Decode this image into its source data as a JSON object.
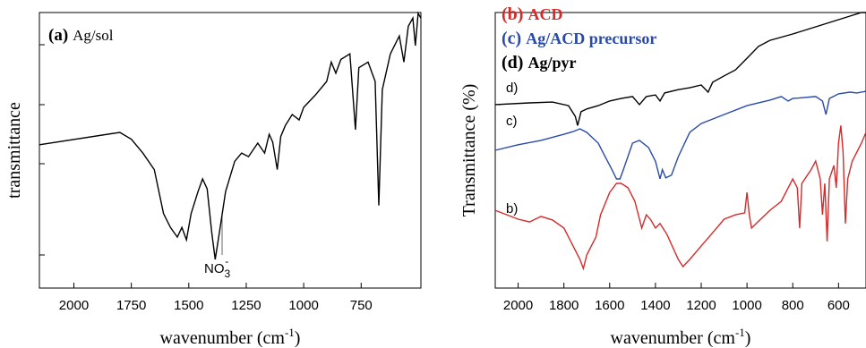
{
  "chart_data": [
    {
      "type": "line",
      "xlabel": "wavenumber (cm",
      "xlabel_sup": "-1",
      "xlabel_end": ")",
      "ylabel": "transmittance",
      "xlim": [
        2150,
        490
      ],
      "xticks": [
        2000,
        1750,
        1500,
        1250,
        1000,
        750
      ],
      "ylim": [
        0,
        100
      ],
      "annotation": {
        "text": "NO",
        "sub": "3",
        "sup": "-"
      },
      "series": [
        {
          "tag": "(a)",
          "name": "Ag/sol",
          "color": "#000000",
          "x": [
            2150,
            1800,
            1750,
            1700,
            1650,
            1610,
            1580,
            1550,
            1530,
            1510,
            1490,
            1460,
            1440,
            1420,
            1400,
            1385,
            1370,
            1340,
            1300,
            1270,
            1240,
            1200,
            1170,
            1150,
            1135,
            1115,
            1100,
            1080,
            1050,
            1020,
            1000,
            950,
            900,
            880,
            860,
            838,
            799,
            775,
            760,
            720,
            689,
            673,
            658,
            623,
            584,
            564,
            545,
            525,
            514,
            502,
            490
          ],
          "values": [
            52,
            56.5,
            54,
            49,
            43,
            27,
            22,
            18.5,
            22,
            17.5,
            27,
            35,
            39.6,
            36,
            20,
            10.4,
            18.5,
            35,
            46,
            49,
            47.7,
            52.6,
            49,
            55.8,
            53,
            43,
            55,
            59,
            63,
            61,
            65.6,
            70,
            75,
            82,
            78,
            83,
            85,
            57.5,
            80,
            82,
            75,
            30,
            72,
            85,
            91.5,
            82,
            95,
            98,
            88,
            99.7,
            98
          ]
        }
      ]
    },
    {
      "type": "line",
      "xlabel": "wavenumber (cm",
      "xlabel_sup": "-1",
      "xlabel_end": ")",
      "ylabel": "Transmittance (%)",
      "xlim": [
        2100,
        480
      ],
      "xticks": [
        2000,
        1800,
        1600,
        1400,
        1200,
        1000,
        800,
        600
      ],
      "ylim": [
        0,
        100
      ],
      "series": [
        {
          "tag": "(b)",
          "name": "ACD",
          "curve_label": "b)",
          "color": "#d62a2a",
          "x": [
            2100,
            2000,
            1950,
            1900,
            1850,
            1800,
            1760,
            1730,
            1715,
            1700,
            1680,
            1660,
            1640,
            1600,
            1570,
            1550,
            1520,
            1490,
            1460,
            1440,
            1420,
            1400,
            1380,
            1350,
            1300,
            1280,
            1250,
            1200,
            1150,
            1100,
            1050,
            1010,
            1000,
            990,
            980,
            960,
            900,
            850,
            820,
            800,
            780,
            770,
            760,
            720,
            700,
            680,
            670,
            660,
            650,
            640,
            620,
            610,
            600,
            590,
            580,
            570,
            560,
            540,
            500,
            480
          ],
          "values": [
            28.2,
            25,
            24,
            26,
            24.7,
            21.8,
            15.3,
            10.4,
            7.1,
            12,
            15.3,
            18.5,
            26.6,
            34.7,
            38,
            38,
            36.4,
            31.5,
            21.8,
            26.6,
            24.7,
            21.8,
            23.4,
            19.5,
            10.4,
            7.8,
            10.4,
            15.3,
            20.1,
            25,
            26.6,
            27.3,
            34.7,
            26.6,
            21.8,
            23.4,
            28.2,
            31.5,
            36.4,
            39.6,
            36.4,
            21.8,
            38,
            43,
            46.1,
            39.6,
            26.6,
            38,
            16.9,
            39.6,
            44.5,
            36.4,
            52.6,
            59,
            49.4,
            23.4,
            39.6,
            46.1,
            52.6,
            56.5
          ]
        },
        {
          "tag": "(c)",
          "name": "Ag/ACD precursor",
          "curve_label": "c)",
          "color": "#2a4aa8",
          "x": [
            2100,
            2000,
            1900,
            1800,
            1760,
            1730,
            1700,
            1650,
            1620,
            1590,
            1570,
            1555,
            1540,
            1500,
            1470,
            1430,
            1400,
            1380,
            1370,
            1355,
            1330,
            1300,
            1250,
            1200,
            1100,
            1000,
            900,
            850,
            820,
            800,
            700,
            670,
            655,
            640,
            600,
            550,
            520,
            480
          ],
          "values": [
            50,
            52,
            53.6,
            55.8,
            56.8,
            57.8,
            56.5,
            52.6,
            47.7,
            43,
            39.6,
            39.6,
            43,
            52.6,
            53.6,
            51,
            46,
            39.6,
            43,
            40,
            41,
            47.7,
            56.5,
            59.7,
            63,
            66.2,
            68.2,
            69.5,
            67.9,
            68.8,
            69.5,
            67.9,
            63,
            68.8,
            70.5,
            71.1,
            70.8,
            71.4
          ]
        },
        {
          "tag": "(d)",
          "name": "Ag/pyr",
          "curve_label": "d)",
          "color": "#000000",
          "x": [
            2100,
            1950,
            1850,
            1780,
            1750,
            1740,
            1725,
            1700,
            1650,
            1600,
            1550,
            1500,
            1470,
            1440,
            1400,
            1380,
            1360,
            1300,
            1250,
            1200,
            1170,
            1150,
            1100,
            1050,
            1000,
            950,
            900,
            800,
            700,
            600,
            550,
            500,
            480
          ],
          "values": [
            66.6,
            67.2,
            67.5,
            66.2,
            62.3,
            59,
            64,
            65,
            66.2,
            67.9,
            68.8,
            69.5,
            66.6,
            69.5,
            70.1,
            67.9,
            70.8,
            72,
            72.7,
            73.7,
            71.1,
            74.7,
            77,
            79.2,
            83.4,
            87.7,
            89.9,
            92.2,
            94.8,
            97.4,
            98.7,
            100,
            100
          ]
        }
      ]
    }
  ]
}
